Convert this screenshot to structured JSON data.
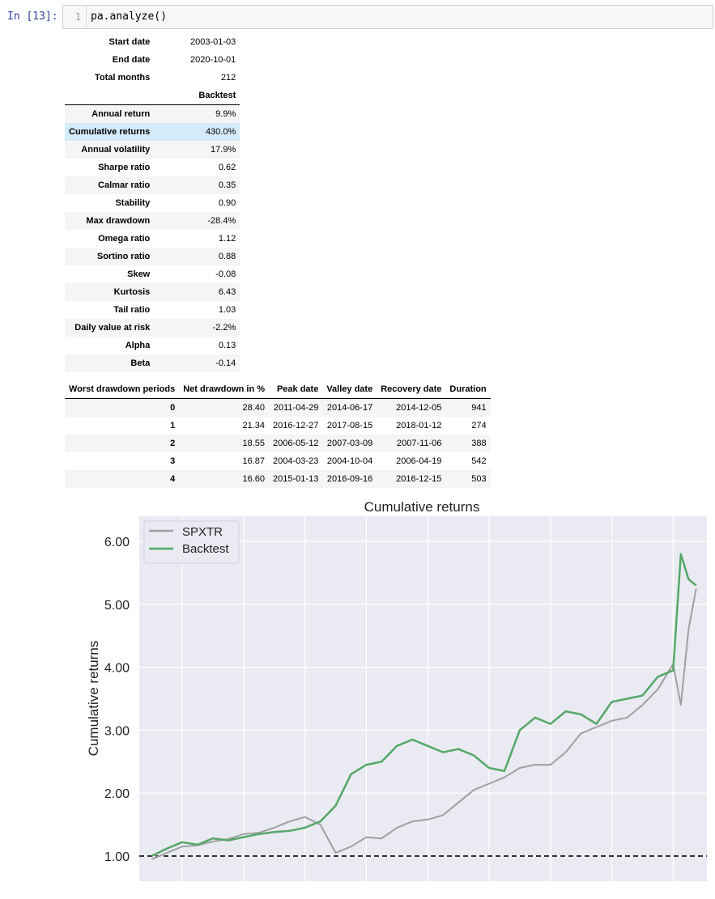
{
  "cell": {
    "prompt": "In [13]:",
    "line_number": "1",
    "code": "pa.analyze()"
  },
  "info_table": {
    "rows": [
      {
        "label": "Start date",
        "value": "2003-01-03"
      },
      {
        "label": "End date",
        "value": "2020-10-01"
      },
      {
        "label": "Total months",
        "value": "212"
      }
    ]
  },
  "perf_table": {
    "column": "Backtest",
    "rows": [
      {
        "label": "Annual return",
        "value": "9.9%"
      },
      {
        "label": "Cumulative returns",
        "value": "430.0%"
      },
      {
        "label": "Annual volatility",
        "value": "17.9%"
      },
      {
        "label": "Sharpe ratio",
        "value": "0.62"
      },
      {
        "label": "Calmar ratio",
        "value": "0.35"
      },
      {
        "label": "Stability",
        "value": "0.90"
      },
      {
        "label": "Max drawdown",
        "value": "-28.4%"
      },
      {
        "label": "Omega ratio",
        "value": "1.12"
      },
      {
        "label": "Sortino ratio",
        "value": "0.88"
      },
      {
        "label": "Skew",
        "value": "-0.08"
      },
      {
        "label": "Kurtosis",
        "value": "6.43"
      },
      {
        "label": "Tail ratio",
        "value": "1.03"
      },
      {
        "label": "Daily value at risk",
        "value": "-2.2%"
      },
      {
        "label": "Alpha",
        "value": "0.13"
      },
      {
        "label": "Beta",
        "value": "-0.14"
      }
    ]
  },
  "drawdown_table": {
    "headers": [
      "Worst drawdown periods",
      "Net drawdown in %",
      "Peak date",
      "Valley date",
      "Recovery date",
      "Duration"
    ],
    "rows": [
      [
        "0",
        "28.40",
        "2011-04-29",
        "2014-06-17",
        "2014-12-05",
        "941"
      ],
      [
        "1",
        "21.34",
        "2016-12-27",
        "2017-08-15",
        "2018-01-12",
        "274"
      ],
      [
        "2",
        "18.55",
        "2006-05-12",
        "2007-03-09",
        "2007-11-06",
        "388"
      ],
      [
        "3",
        "16.87",
        "2004-03-23",
        "2004-10-04",
        "2006-04-19",
        "542"
      ],
      [
        "4",
        "16.60",
        "2015-01-13",
        "2016-09-16",
        "2016-12-15",
        "503"
      ]
    ]
  },
  "chart_data": {
    "type": "line",
    "title": "Cumulative returns",
    "ylabel": "Cumulative returns",
    "xlabel": "",
    "ylim": [
      0.6,
      6.4
    ],
    "yticks": [
      "1.00",
      "2.00",
      "3.00",
      "4.00",
      "5.00",
      "6.00"
    ],
    "grid": true,
    "legend_position": "top-left",
    "reference_line": {
      "y": 1.0,
      "style": "dashed",
      "color": "#000000"
    },
    "x": [
      2003.0,
      2003.5,
      2004.0,
      2004.5,
      2005.0,
      2005.5,
      2006.0,
      2006.5,
      2007.0,
      2007.5,
      2008.0,
      2008.5,
      2009.0,
      2009.5,
      2010.0,
      2010.5,
      2011.0,
      2011.5,
      2012.0,
      2012.5,
      2013.0,
      2013.5,
      2014.0,
      2014.5,
      2015.0,
      2015.5,
      2016.0,
      2016.5,
      2017.0,
      2017.5,
      2018.0,
      2018.5,
      2019.0,
      2019.5,
      2020.0,
      2020.25,
      2020.5,
      2020.75
    ],
    "series": [
      {
        "name": "SPXTR",
        "color": "#a0a0a0",
        "values": [
          0.95,
          1.05,
          1.15,
          1.17,
          1.23,
          1.27,
          1.35,
          1.37,
          1.45,
          1.55,
          1.62,
          1.5,
          1.05,
          1.15,
          1.3,
          1.28,
          1.45,
          1.55,
          1.58,
          1.65,
          1.85,
          2.05,
          2.15,
          2.25,
          2.4,
          2.45,
          2.45,
          2.65,
          2.95,
          3.05,
          3.15,
          3.2,
          3.4,
          3.65,
          4.05,
          3.4,
          4.6,
          5.25
        ]
      },
      {
        "name": "Backtest",
        "color": "#55a868",
        "values": [
          1.0,
          1.12,
          1.22,
          1.18,
          1.28,
          1.25,
          1.3,
          1.35,
          1.38,
          1.4,
          1.45,
          1.55,
          1.8,
          2.3,
          2.45,
          2.5,
          2.75,
          2.85,
          2.75,
          2.65,
          2.7,
          2.6,
          2.4,
          2.35,
          3.0,
          3.2,
          3.1,
          3.3,
          3.25,
          3.1,
          3.45,
          3.5,
          3.55,
          3.85,
          3.95,
          5.8,
          5.4,
          5.3
        ]
      }
    ]
  }
}
